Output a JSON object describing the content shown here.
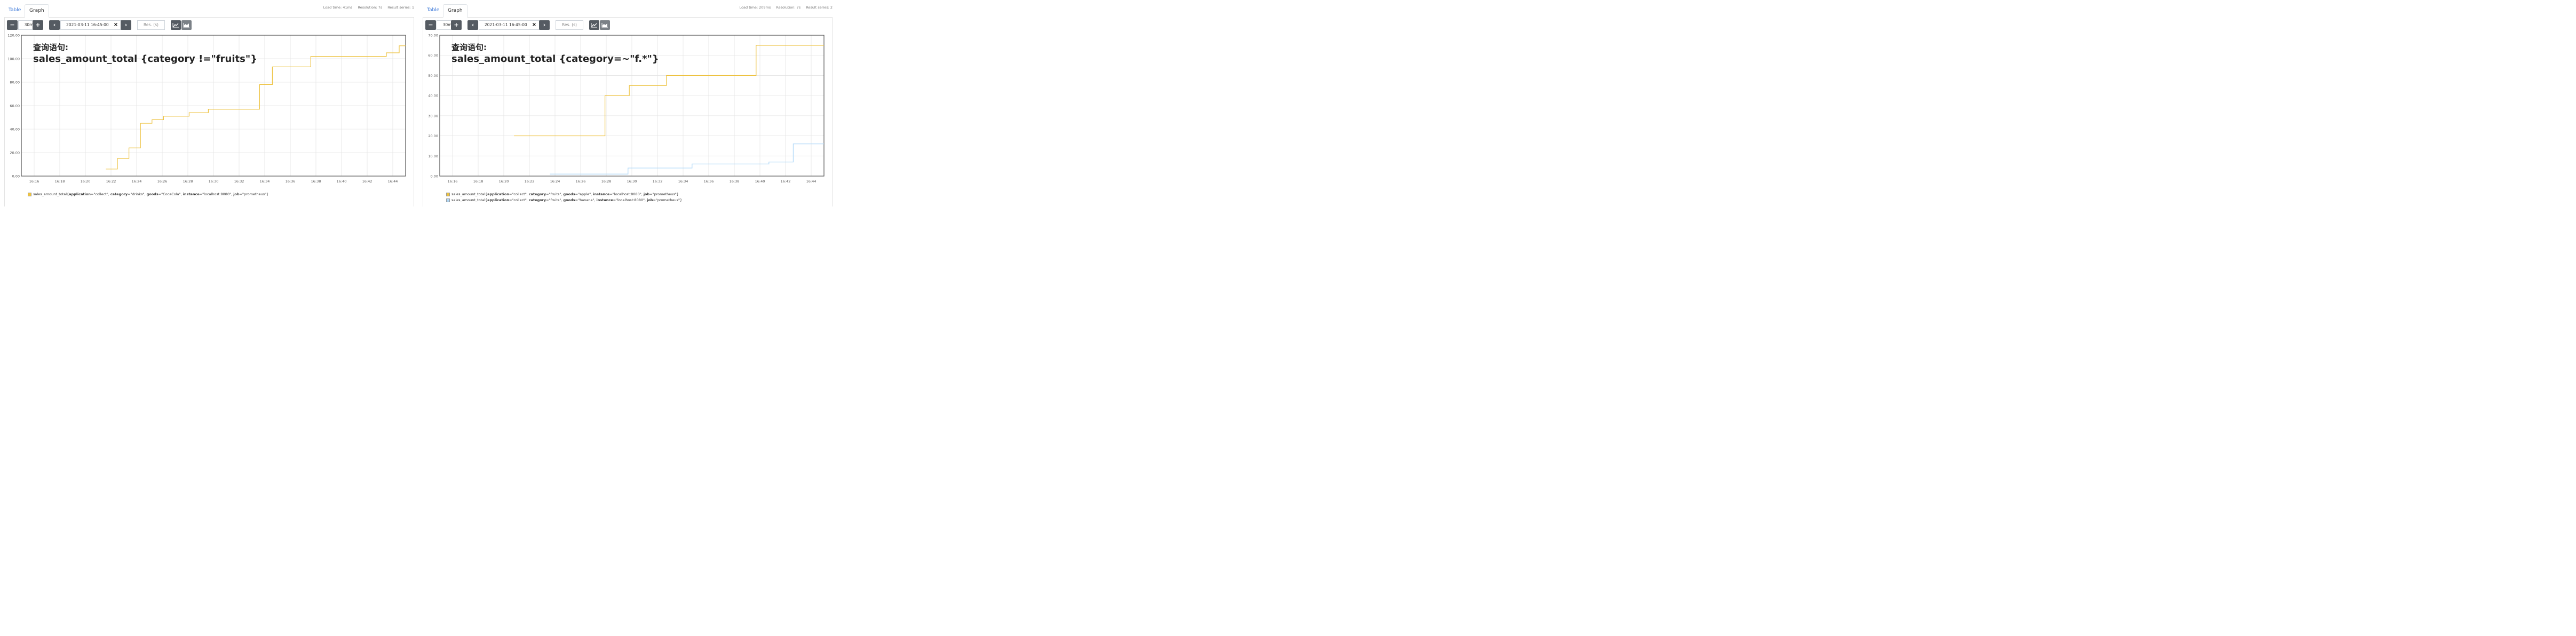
{
  "panels": [
    {
      "tabs": {
        "table": "Table",
        "graph": "Graph"
      },
      "stats": {
        "load_time": "Load time: 41ms",
        "resolution": "Resolution: 7s",
        "result_series": "Result series: 1"
      },
      "controls": {
        "minus": "−",
        "range": "30m",
        "plus": "+",
        "prev": "‹",
        "end_time": "2021-03-11 16:45:00",
        "clear": "×",
        "next": "›",
        "res_placeholder": "Res. (s)"
      },
      "annotation": {
        "line1": "查询语句:",
        "line2": "sales_amount_total {category !=\"fruits\"}"
      },
      "legend": [
        {
          "color": "#edc240",
          "text": "sales_amount_total{application=\"collect\", category=\"drinks\", goods=\"CocaCola\", instance=\"localhost:8080\", job=\"prometheus\"}"
        }
      ]
    },
    {
      "tabs": {
        "table": "Table",
        "graph": "Graph"
      },
      "stats": {
        "load_time": "Load time: 209ms",
        "resolution": "Resolution: 7s",
        "result_series": "Result series: 2"
      },
      "controls": {
        "minus": "−",
        "range": "30m",
        "plus": "+",
        "prev": "‹",
        "end_time": "2021-03-11 16:45:00",
        "clear": "×",
        "next": "›",
        "res_placeholder": "Res. (s)"
      },
      "annotation": {
        "line1": "查询语句:",
        "line2": "sales_amount_total {category=~\"f.*\"}"
      },
      "legend": [
        {
          "color": "#edc240",
          "text": "sales_amount_total{application=\"collect\", category=\"fruits\", goods=\"apple\", instance=\"localhost:8080\", job=\"prometheus\"}"
        },
        {
          "color": "#afd8f8",
          "text": "sales_amount_total{application=\"collect\", category=\"fruits\", goods=\"banana\", instance=\"localhost:8080\", job=\"prometheus\"}"
        }
      ]
    }
  ],
  "chart_data": [
    {
      "type": "line",
      "step": true,
      "xticks": [
        "16:16",
        "16:18",
        "16:20",
        "16:22",
        "16:24",
        "16:26",
        "16:28",
        "16:30",
        "16:32",
        "16:34",
        "16:36",
        "16:38",
        "16:40",
        "16:42",
        "16:44"
      ],
      "xlim": [
        "16:15",
        "16:45"
      ],
      "yticks": [
        "0.00",
        "20.00",
        "40.00",
        "60.00",
        "80.00",
        "100.00",
        "120.00"
      ],
      "ylim": [
        0,
        120
      ],
      "grid": true,
      "series": [
        {
          "color": "#edc240",
          "points": [
            [
              "16:21.6",
              6
            ],
            [
              "16:22.5",
              15
            ],
            [
              "16:23.4",
              24
            ],
            [
              "16:24.3",
              45
            ],
            [
              "16:25.2",
              48
            ],
            [
              "16:26.1",
              51
            ],
            [
              "16:28.1",
              54
            ],
            [
              "16:29.6",
              57
            ],
            [
              "16:33.6",
              78
            ],
            [
              "16:34.6",
              93
            ],
            [
              "16:37.6",
              102
            ],
            [
              "16:43.5",
              105
            ],
            [
              "16:44.5",
              111
            ],
            [
              "16:45",
              111
            ]
          ]
        }
      ]
    },
    {
      "type": "line",
      "step": true,
      "xticks": [
        "16:16",
        "16:18",
        "16:20",
        "16:22",
        "16:24",
        "16:26",
        "16:28",
        "16:30",
        "16:32",
        "16:34",
        "16:36",
        "16:38",
        "16:40",
        "16:42",
        "16:44"
      ],
      "xlim": [
        "16:15",
        "16:45"
      ],
      "yticks": [
        "0.00",
        "10.00",
        "20.00",
        "30.00",
        "40.00",
        "50.00",
        "60.00",
        "70.00"
      ],
      "ylim": [
        0,
        70
      ],
      "grid": true,
      "series": [
        {
          "color": "#edc240",
          "points": [
            [
              "16:20.8",
              20
            ],
            [
              "16:27.9",
              40
            ],
            [
              "16:29.8",
              45
            ],
            [
              "16:32.7",
              50
            ],
            [
              "16:39.7",
              65
            ],
            [
              "16:45",
              65
            ]
          ]
        },
        {
          "color": "#afd8f8",
          "points": [
            [
              "16:23.6",
              1
            ],
            [
              "16:29.7",
              4
            ],
            [
              "16:34.7",
              6
            ],
            [
              "16:40.7",
              7
            ],
            [
              "16:42.6",
              16
            ],
            [
              "16:45",
              16
            ]
          ]
        }
      ]
    }
  ]
}
